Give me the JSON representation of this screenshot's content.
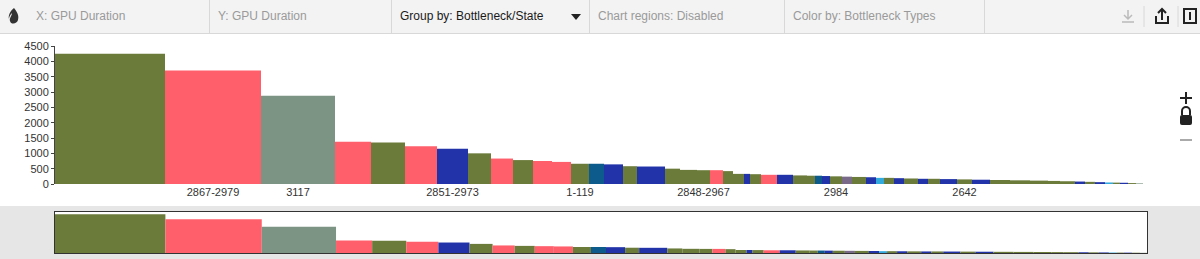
{
  "toolbar": {
    "fields": [
      {
        "text": "X: GPU Duration",
        "active": false
      },
      {
        "text": "Y: GPU Duration",
        "active": false
      },
      {
        "text": "Group by: Bottleneck/State",
        "active": true
      },
      {
        "text": "Chart regions: Disabled",
        "active": false
      },
      {
        "text": "Color by: Bottleneck Types",
        "active": false
      }
    ]
  },
  "chart_data": {
    "type": "bar",
    "categories": [
      null,
      "2867-2979",
      "3117",
      null,
      null,
      null,
      "2851-2973",
      null,
      null,
      null,
      null,
      null,
      "1-119",
      null,
      null,
      null,
      null,
      null,
      null,
      "2848-2967",
      null,
      null,
      null,
      null,
      null,
      null,
      null,
      null,
      null,
      null,
      null,
      "2984",
      null,
      null,
      null,
      null,
      null,
      null,
      null,
      null,
      null,
      null,
      "2642",
      null,
      null,
      null,
      null,
      null,
      null,
      null,
      null,
      null,
      null,
      null,
      null,
      null,
      null
    ],
    "values": [
      4250,
      3700,
      2880,
      1380,
      1350,
      1230,
      1150,
      1000,
      830,
      780,
      750,
      720,
      660,
      660,
      640,
      580,
      570,
      500,
      460,
      450,
      450,
      420,
      330,
      330,
      320,
      300,
      300,
      280,
      270,
      270,
      260,
      250,
      240,
      230,
      220,
      200,
      200,
      190,
      180,
      170,
      170,
      160,
      150,
      140,
      130,
      120,
      110,
      100,
      90,
      80,
      70,
      60,
      50,
      45,
      40,
      30,
      20
    ],
    "widths": [
      110,
      96,
      74,
      36,
      34,
      32,
      31,
      23,
      22,
      20,
      19,
      19,
      18,
      15,
      19,
      14,
      28,
      15,
      17,
      13,
      13,
      10,
      11,
      6,
      11,
      16,
      16,
      14,
      8,
      7,
      8,
      12,
      10,
      14,
      10,
      8,
      10,
      10,
      14,
      10,
      12,
      17,
      15,
      18,
      20,
      20,
      18,
      12,
      15,
      10,
      10,
      10,
      8,
      7,
      8,
      8,
      7
    ],
    "colors": [
      "#6b7b3a",
      "#ff5f6b",
      "#7b9483",
      "#ff5f6b",
      "#6b7b3a",
      "#ff5f6b",
      "#2233aa",
      "#6b7b3a",
      "#ff5f6b",
      "#6b7b3a",
      "#ff5f6b",
      "#ff5f6b",
      "#6b7b3a",
      "#0d5a8c",
      "#2233aa",
      "#6b7b3a",
      "#2233aa",
      "#6b7b3a",
      "#6b7b3a",
      "#6b7b3a",
      "#ff5f6b",
      "#6b7b3a",
      "#6b7b3a",
      "#2233aa",
      "#6b7b3a",
      "#ff5f6b",
      "#2233aa",
      "#6b7b3a",
      "#6b7b3a",
      "#0d5a8c",
      "#2233aa",
      "#6b7b3a",
      "#7a6a8a",
      "#6b7b3a",
      "#2233aa",
      "#33aadd",
      "#6b7b3a",
      "#2233aa",
      "#6b7b3a",
      "#2233aa",
      "#6b7b3a",
      "#2233aa",
      "#6b7b3a",
      "#2233aa",
      "#6b7b3a",
      "#6b7b3a",
      "#6b7b3a",
      "#6b7b3a",
      "#6b7b3a",
      "#2233aa",
      "#6b7b3a",
      "#2233aa",
      "#33aadd",
      "#6b7b3a",
      "#2233aa",
      "#6b7b3a",
      "#7b9483"
    ],
    "ylim": [
      0,
      4500
    ],
    "yticks": [
      0,
      500,
      1000,
      1500,
      2000,
      2500,
      3000,
      3500,
      4000,
      4500
    ],
    "grid": false
  }
}
